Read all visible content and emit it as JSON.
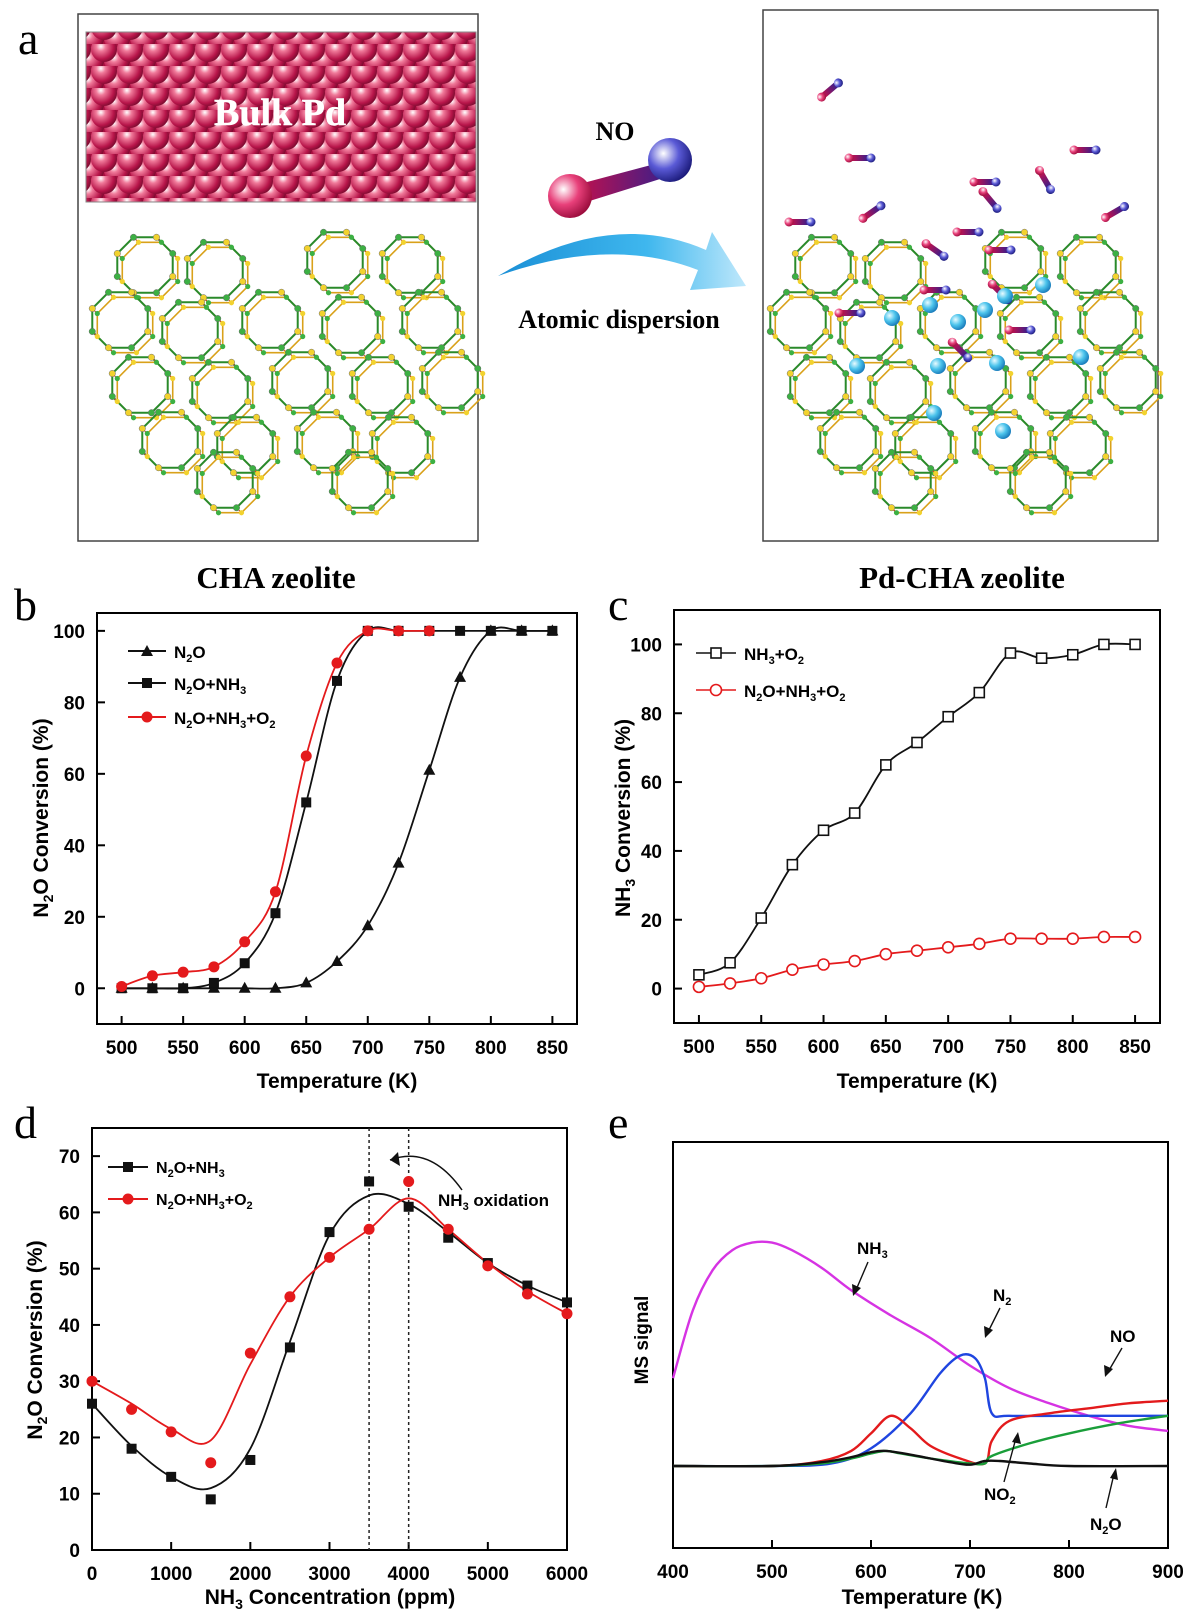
{
  "panel_letters": [
    "a",
    "b",
    "c",
    "d",
    "e"
  ],
  "panel_a": {
    "bulk_label": "Bulk Pd",
    "molecule_label": "NO",
    "arrow_label": "Atomic dispersion",
    "left_caption": "CHA zeolite",
    "right_caption": "Pd-CHA zeolite"
  },
  "chart_data": [
    {
      "id": "b",
      "type": "line",
      "xlabel": "Temperature (K)",
      "ylabel": "N2O Conversion (%)",
      "xlim": [
        480,
        870
      ],
      "ylim": [
        -10,
        105
      ],
      "xticks": [
        500,
        550,
        600,
        650,
        700,
        750,
        800,
        850
      ],
      "yticks": [
        0,
        20,
        40,
        60,
        80,
        100
      ],
      "legend_position": "top-left",
      "series": [
        {
          "name": "N2O",
          "color": "#111111",
          "marker": "triangle",
          "x": [
            500,
            525,
            550,
            575,
            600,
            625,
            650,
            675,
            700,
            725,
            750,
            775,
            800,
            825,
            850
          ],
          "y": [
            0,
            0,
            0,
            0,
            0,
            0,
            1.5,
            7.5,
            17.5,
            35,
            61,
            87,
            100,
            100,
            100
          ]
        },
        {
          "name": "N2O+NH3",
          "color": "#111111",
          "marker": "square",
          "x": [
            500,
            525,
            550,
            575,
            600,
            625,
            650,
            675,
            700,
            725,
            750,
            775,
            800,
            825,
            850
          ],
          "y": [
            0,
            0,
            0,
            1.5,
            7,
            21,
            52,
            86,
            100,
            100,
            100,
            100,
            100,
            100,
            100
          ]
        },
        {
          "name": "N2O+NH3+O2",
          "color": "#e41a1c",
          "marker": "circle",
          "x": [
            500,
            525,
            550,
            575,
            600,
            625,
            650,
            675,
            700,
            725,
            750
          ],
          "y": [
            0.5,
            3.5,
            4.5,
            6,
            13,
            27,
            65,
            91,
            100,
            100,
            100
          ]
        }
      ]
    },
    {
      "id": "c",
      "type": "line",
      "xlabel": "Temperature (K)",
      "ylabel": "NH3 Conversion (%)",
      "xlim": [
        480,
        870
      ],
      "ylim": [
        -10,
        110
      ],
      "xticks": [
        500,
        550,
        600,
        650,
        700,
        750,
        800,
        850
      ],
      "yticks": [
        0,
        20,
        40,
        60,
        80,
        100
      ],
      "legend_position": "top-left",
      "series": [
        {
          "name": "NH3+O2",
          "color": "#111111",
          "marker": "open-square",
          "x": [
            500,
            525,
            550,
            575,
            600,
            625,
            650,
            675,
            700,
            725,
            750,
            775,
            800,
            825,
            850
          ],
          "y": [
            4,
            7.5,
            20.5,
            36,
            46,
            51,
            65,
            71.5,
            79,
            86,
            97.5,
            96,
            97,
            100,
            100
          ]
        },
        {
          "name": "N2O+NH3+O2",
          "color": "#e41a1c",
          "marker": "open-circle",
          "x": [
            500,
            525,
            550,
            575,
            600,
            625,
            650,
            675,
            700,
            725,
            750,
            775,
            800,
            825,
            850
          ],
          "y": [
            0.5,
            1.5,
            3,
            5.5,
            7,
            8,
            10,
            11,
            12,
            13,
            14.5,
            14.5,
            14.5,
            15,
            15
          ]
        }
      ]
    },
    {
      "id": "d",
      "type": "line",
      "xlabel": "NH3 Concentration (ppm)",
      "ylabel": "N2O Conversion (%)",
      "xlim": [
        0,
        6000
      ],
      "ylim": [
        0,
        75
      ],
      "xticks": [
        0,
        1000,
        2000,
        3000,
        4000,
        5000,
        6000
      ],
      "yticks": [
        0,
        10,
        20,
        30,
        40,
        50,
        60,
        70
      ],
      "legend_position": "top-left",
      "vlines": [
        3500,
        4000
      ],
      "annotation": "NH3 oxidation",
      "series": [
        {
          "name": "N2O+NH3",
          "color": "#111111",
          "marker": "square",
          "x": [
            0,
            500,
            1000,
            1500,
            2000,
            2500,
            3000,
            3500,
            4000,
            4500,
            5000,
            5500,
            6000
          ],
          "y": [
            26,
            18,
            13,
            9,
            16,
            36,
            56.5,
            65.5,
            61,
            55.5,
            51,
            47,
            44
          ],
          "fit": [
            [
              0,
              26
            ],
            [
              500,
              18.5
            ],
            [
              1000,
              13
            ],
            [
              1500,
              11
            ],
            [
              2000,
              18
            ],
            [
              2500,
              37
            ],
            [
              3000,
              56
            ],
            [
              3500,
              63
            ],
            [
              4000,
              61.5
            ],
            [
              4500,
              56.5
            ],
            [
              5000,
              51
            ],
            [
              5500,
              47
            ],
            [
              6000,
              44
            ]
          ]
        },
        {
          "name": "N2O+NH3+O2",
          "color": "#e41a1c",
          "marker": "circle",
          "x": [
            0,
            500,
            1000,
            1500,
            2000,
            2500,
            3000,
            3500,
            4000,
            4500,
            5000,
            5500,
            6000
          ],
          "y": [
            30,
            25,
            21,
            15.5,
            35,
            45,
            52,
            57,
            65.5,
            57,
            50.5,
            45.5,
            42
          ],
          "fit": [
            [
              0,
              30
            ],
            [
              500,
              26
            ],
            [
              1000,
              21.5
            ],
            [
              1500,
              19.5
            ],
            [
              2000,
              33
            ],
            [
              2500,
              45
            ],
            [
              3000,
              52
            ],
            [
              3500,
              57
            ],
            [
              4000,
              62.5
            ],
            [
              4500,
              57
            ],
            [
              5000,
              51
            ],
            [
              5500,
              46
            ],
            [
              6000,
              42
            ]
          ]
        }
      ]
    },
    {
      "id": "e",
      "type": "line",
      "xlabel": "Temperature (K)",
      "ylabel": "MS signal",
      "xlim": [
        400,
        900
      ],
      "ylim": [
        0,
        100
      ],
      "xticks": [
        400,
        500,
        600,
        700,
        800,
        900
      ],
      "yticks": [],
      "series": [
        {
          "name": "NH3",
          "color": "#d633e3",
          "x": [
            400,
            420,
            440,
            460,
            480,
            500,
            520,
            550,
            580,
            620,
            660,
            700,
            740,
            780,
            820,
            860,
            900
          ],
          "y": [
            35,
            62,
            78,
            86,
            89,
            89,
            86,
            79,
            70,
            60,
            51,
            40,
            31,
            25,
            20,
            16,
            14
          ]
        },
        {
          "name": "N2",
          "color": "#1f45e0",
          "x": [
            400,
            500,
            560,
            600,
            640,
            670,
            690,
            705,
            715,
            722,
            740,
            800,
            900
          ],
          "y": [
            0,
            0,
            1,
            7,
            21,
            37,
            44,
            43,
            35,
            21,
            20,
            20,
            20
          ]
        },
        {
          "name": "NO",
          "color": "#e31a1c",
          "x": [
            400,
            500,
            550,
            580,
            600,
            620,
            640,
            660,
            690,
            715,
            722,
            740,
            780,
            820,
            860,
            900
          ],
          "y": [
            0,
            0,
            2,
            6,
            13,
            20,
            15,
            8,
            3,
            1,
            10,
            18,
            21,
            23,
            25,
            26
          ]
        },
        {
          "name": "NO2",
          "color": "#1a9e3a",
          "x": [
            400,
            500,
            550,
            580,
            600,
            615,
            630,
            660,
            700,
            715,
            722,
            760,
            800,
            850,
            900
          ],
          "y": [
            0,
            0,
            1,
            3,
            5,
            6,
            5,
            3,
            1,
            1,
            4,
            9,
            13,
            17,
            20
          ]
        },
        {
          "name": "N2O",
          "color": "#111111",
          "x": [
            400,
            500,
            550,
            580,
            600,
            615,
            640,
            680,
            700,
            715,
            730,
            760,
            800,
            900
          ],
          "y": [
            0,
            0,
            1.5,
            3.5,
            5.5,
            6,
            4.5,
            1.5,
            0.5,
            2,
            2,
            1,
            0,
            0
          ]
        }
      ],
      "curve_labels": [
        "NH3",
        "N2",
        "NO",
        "NO2",
        "N2O"
      ]
    }
  ]
}
